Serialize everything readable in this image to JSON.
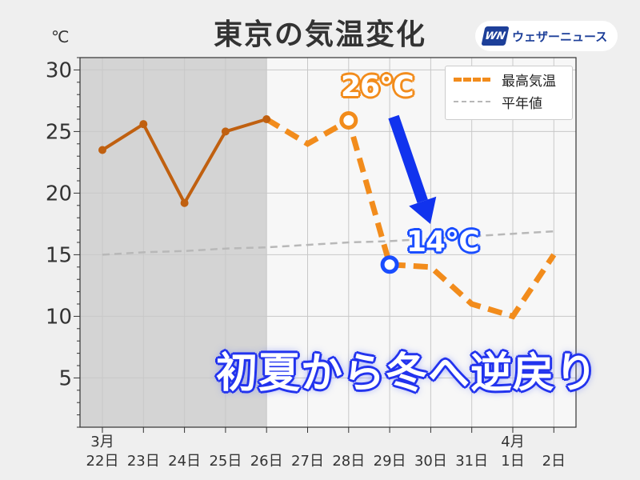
{
  "header": {
    "title": "東京の気温変化",
    "unit": "℃",
    "logo_mark": "WN",
    "logo_text": "ウェザーニュース"
  },
  "legend": {
    "max_label": "最高気温",
    "normal_label": "平年値"
  },
  "callouts": {
    "high": "26℃",
    "low": "14℃",
    "headline": "初夏から冬へ逆戻り"
  },
  "colors": {
    "observed": "#c06010",
    "forecast": "#f28c1c",
    "normal": "#b8b8b8",
    "shade": "#d4d4d4",
    "plot_bg": "#f7f7f7",
    "arrow": "#1133ee",
    "low_marker": "#1a4dff"
  },
  "chart_data": {
    "type": "line",
    "title": "東京の気温変化",
    "ylabel": "℃",
    "xlabel": "",
    "ylim": [
      1,
      31
    ],
    "yticks": [
      5,
      10,
      15,
      20,
      25,
      30
    ],
    "grid": true,
    "legend_position": "top-right",
    "categories": [
      "22日",
      "23日",
      "24日",
      "25日",
      "26日",
      "27日",
      "28日",
      "29日",
      "30日",
      "31日",
      "1日",
      "2日"
    ],
    "month_labels": [
      {
        "index": 0,
        "label": "3月"
      },
      {
        "index": 10,
        "label": "4月"
      }
    ],
    "observed_through_index": 4,
    "series": [
      {
        "name": "最高気温",
        "values": [
          23.5,
          25.6,
          19.2,
          25.0,
          26.0,
          24.0,
          25.9,
          14.2,
          14.0,
          11.0,
          10.0,
          15.0
        ]
      },
      {
        "name": "平年値",
        "values": [
          15.0,
          15.2,
          15.3,
          15.5,
          15.6,
          15.8,
          16.0,
          16.1,
          16.3,
          16.5,
          16.7,
          16.9
        ]
      }
    ]
  }
}
